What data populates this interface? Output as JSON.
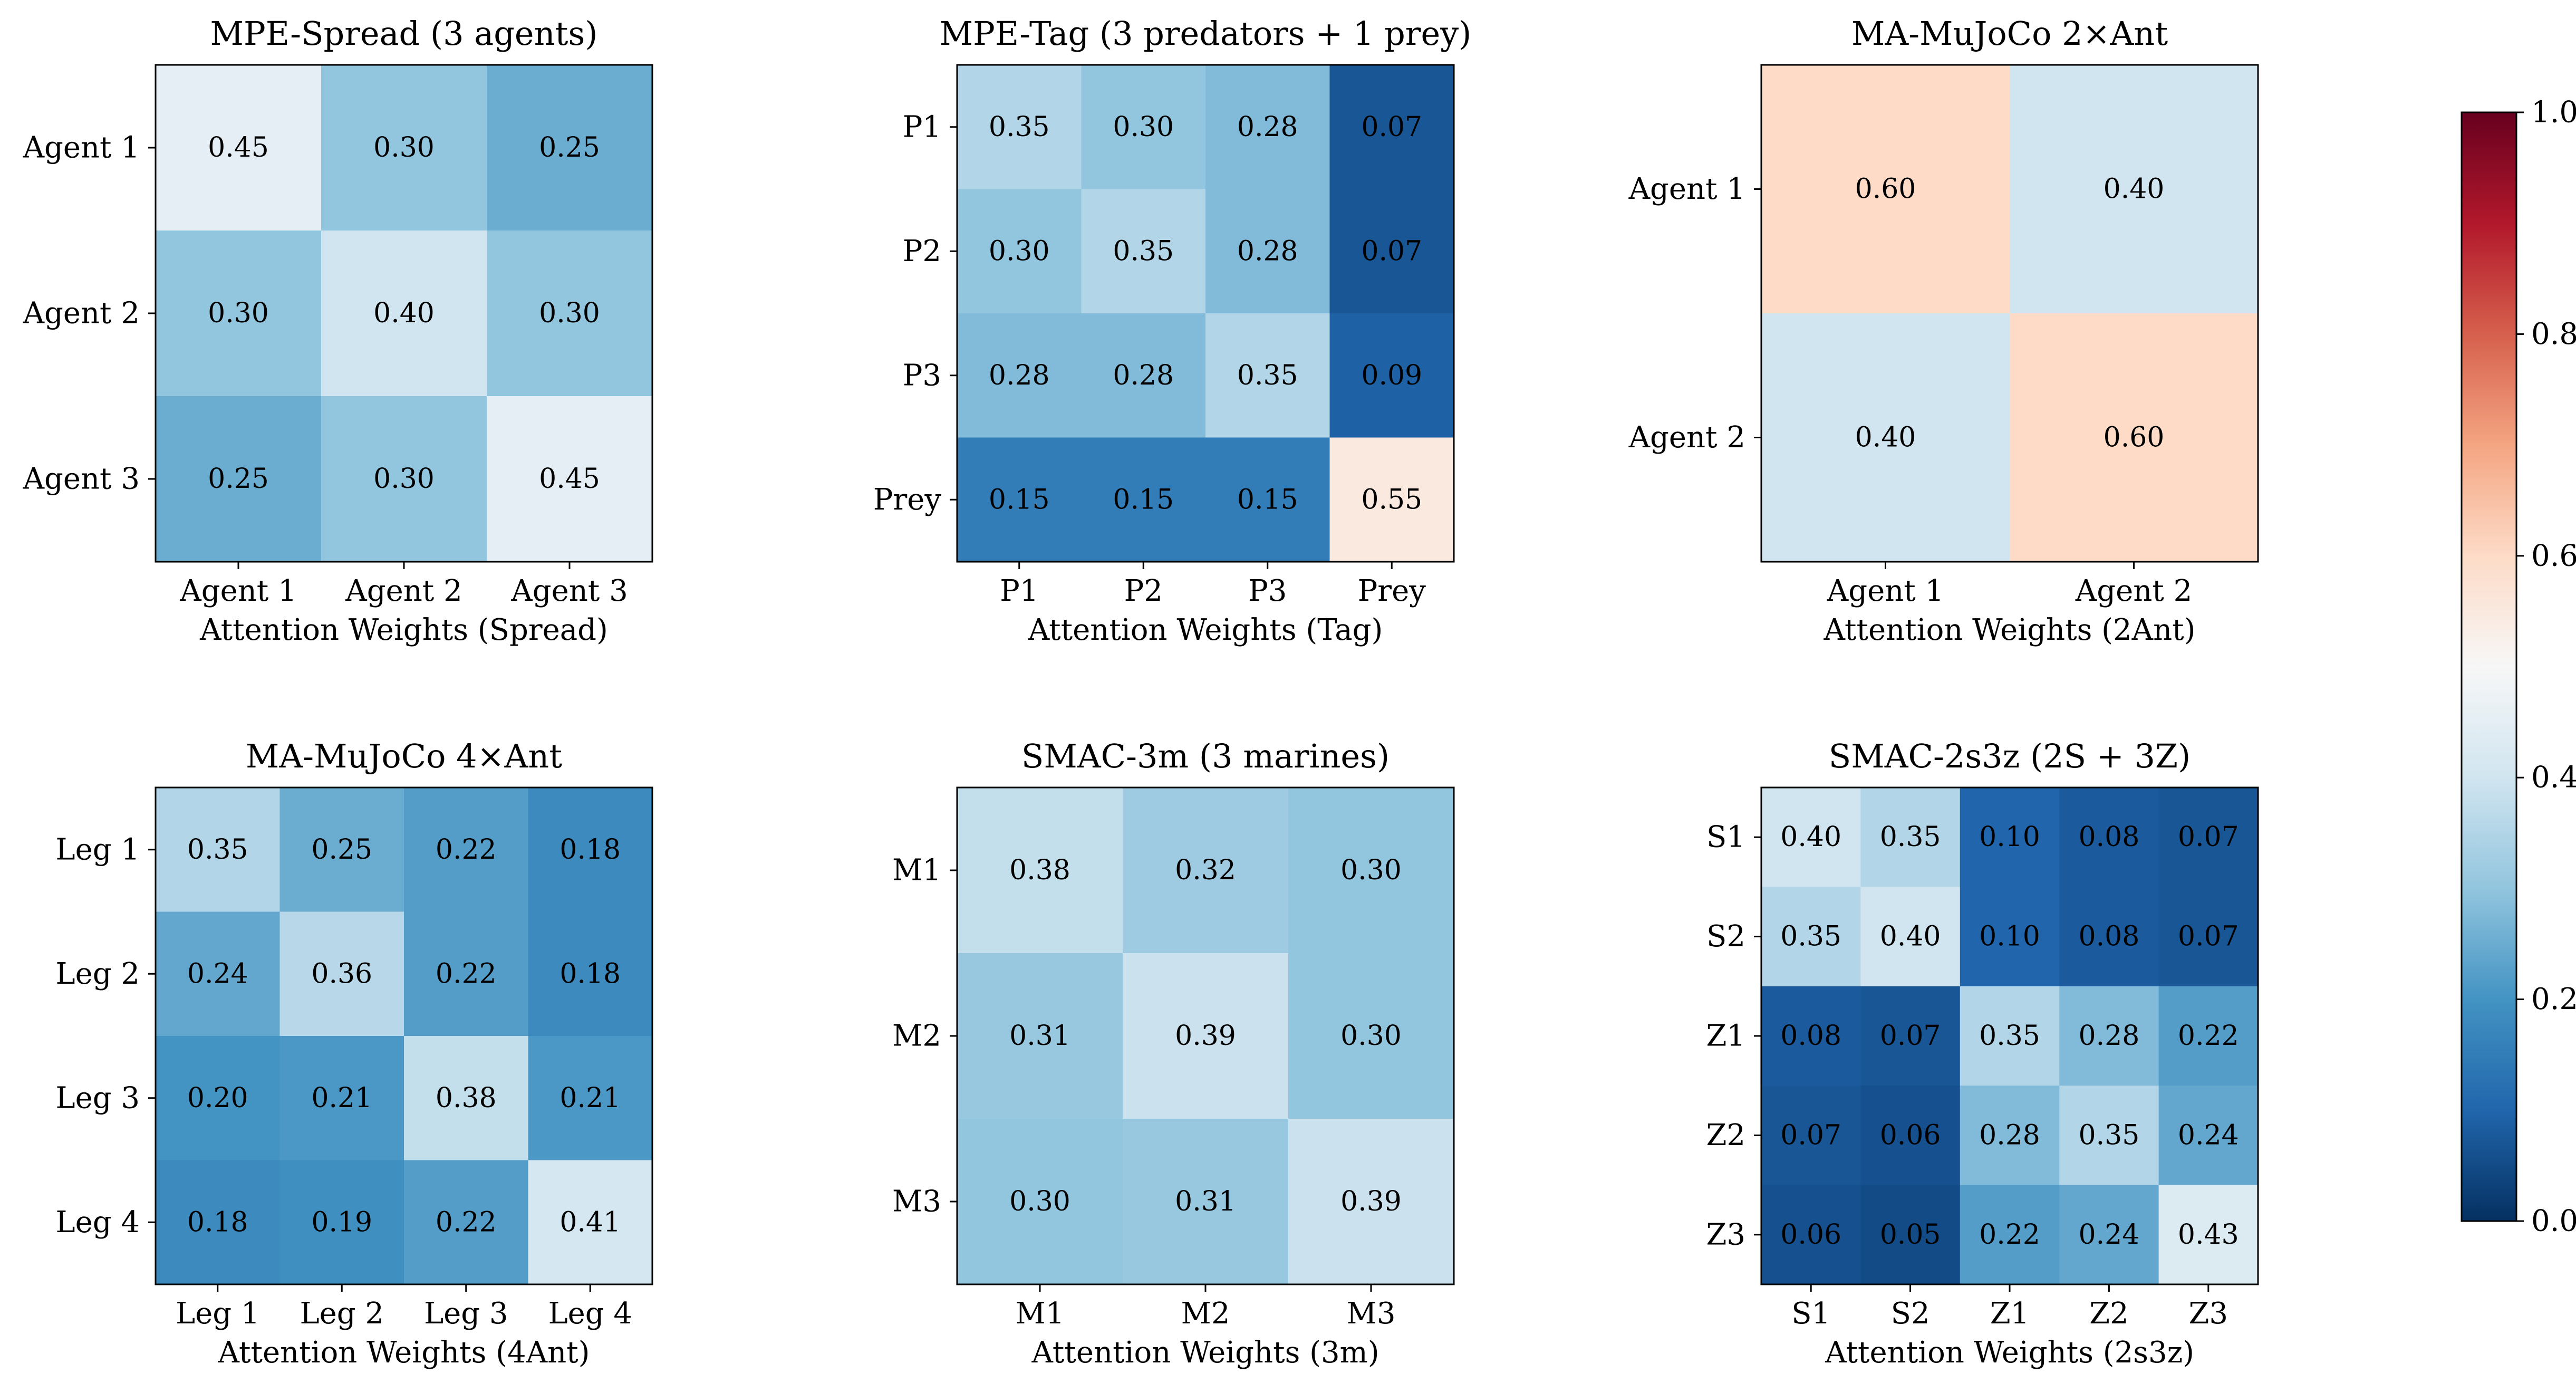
{
  "figure": {
    "colormap": "RdBu_r",
    "colormap_stops": [
      "#053061",
      "#2166ac",
      "#4393c3",
      "#92c5de",
      "#d1e5f0",
      "#f7f7f7",
      "#fddbc7",
      "#f4a582",
      "#d6604d",
      "#b2182b",
      "#67001f"
    ],
    "value_range": [
      0.0,
      1.0
    ]
  },
  "chart_data": [
    {
      "type": "heatmap",
      "title": "MPE-Spread (3 agents)",
      "xlabel": "Attention Weights (Spread)",
      "x_tick_labels": [
        "Agent 1",
        "Agent 2",
        "Agent 3"
      ],
      "y_tick_labels": [
        "Agent 1",
        "Agent 2",
        "Agent 3"
      ],
      "values": [
        [
          0.45,
          0.3,
          0.25
        ],
        [
          0.3,
          0.4,
          0.3
        ],
        [
          0.25,
          0.3,
          0.45
        ]
      ],
      "cell_labels": [
        [
          "0.45",
          "0.30",
          "0.25"
        ],
        [
          "0.30",
          "0.40",
          "0.30"
        ],
        [
          "0.25",
          "0.30",
          "0.45"
        ]
      ]
    },
    {
      "type": "heatmap",
      "title": "MPE-Tag (3 predators + 1 prey)",
      "xlabel": "Attention Weights (Tag)",
      "x_tick_labels": [
        "P1",
        "P2",
        "P3",
        "Prey"
      ],
      "y_tick_labels": [
        "P1",
        "P2",
        "P3",
        "Prey"
      ],
      "values": [
        [
          0.35,
          0.3,
          0.28,
          0.07
        ],
        [
          0.3,
          0.35,
          0.28,
          0.07
        ],
        [
          0.28,
          0.28,
          0.35,
          0.09
        ],
        [
          0.15,
          0.15,
          0.15,
          0.55
        ]
      ],
      "cell_labels": [
        [
          "0.35",
          "0.30",
          "0.28",
          "0.07"
        ],
        [
          "0.30",
          "0.35",
          "0.28",
          "0.07"
        ],
        [
          "0.28",
          "0.28",
          "0.35",
          "0.09"
        ],
        [
          "0.15",
          "0.15",
          "0.15",
          "0.55"
        ]
      ]
    },
    {
      "type": "heatmap",
      "title": "MA-MuJoCo 2×Ant",
      "xlabel": "Attention Weights (2Ant)",
      "x_tick_labels": [
        "Agent 1",
        "Agent 2"
      ],
      "y_tick_labels": [
        "Agent 1",
        "Agent 2"
      ],
      "values": [
        [
          0.6,
          0.4
        ],
        [
          0.4,
          0.6
        ]
      ],
      "cell_labels": [
        [
          "0.60",
          "0.40"
        ],
        [
          "0.40",
          "0.60"
        ]
      ]
    },
    {
      "type": "heatmap",
      "title": "MA-MuJoCo 4×Ant",
      "xlabel": "Attention Weights (4Ant)",
      "x_tick_labels": [
        "Leg 1",
        "Leg 2",
        "Leg 3",
        "Leg 4"
      ],
      "y_tick_labels": [
        "Leg 1",
        "Leg 2",
        "Leg 3",
        "Leg 4"
      ],
      "values": [
        [
          0.35,
          0.25,
          0.22,
          0.18
        ],
        [
          0.24,
          0.36,
          0.22,
          0.18
        ],
        [
          0.2,
          0.21,
          0.38,
          0.21
        ],
        [
          0.18,
          0.19,
          0.22,
          0.41
        ]
      ],
      "cell_labels": [
        [
          "0.35",
          "0.25",
          "0.22",
          "0.18"
        ],
        [
          "0.24",
          "0.36",
          "0.22",
          "0.18"
        ],
        [
          "0.20",
          "0.21",
          "0.38",
          "0.21"
        ],
        [
          "0.18",
          "0.19",
          "0.22",
          "0.41"
        ]
      ]
    },
    {
      "type": "heatmap",
      "title": "SMAC-3m (3 marines)",
      "xlabel": "Attention Weights (3m)",
      "x_tick_labels": [
        "M1",
        "M2",
        "M3"
      ],
      "y_tick_labels": [
        "M1",
        "M2",
        "M3"
      ],
      "values": [
        [
          0.38,
          0.32,
          0.3
        ],
        [
          0.31,
          0.39,
          0.3
        ],
        [
          0.3,
          0.31,
          0.39
        ]
      ],
      "cell_labels": [
        [
          "0.38",
          "0.32",
          "0.30"
        ],
        [
          "0.31",
          "0.39",
          "0.30"
        ],
        [
          "0.30",
          "0.31",
          "0.39"
        ]
      ]
    },
    {
      "type": "heatmap",
      "title": "SMAC-2s3z (2S + 3Z)",
      "xlabel": "Attention Weights (2s3z)",
      "x_tick_labels": [
        "S1",
        "S2",
        "Z1",
        "Z2",
        "Z3"
      ],
      "y_tick_labels": [
        "S1",
        "S2",
        "Z1",
        "Z2",
        "Z3"
      ],
      "values": [
        [
          0.4,
          0.35,
          0.1,
          0.08,
          0.07
        ],
        [
          0.35,
          0.4,
          0.1,
          0.08,
          0.07
        ],
        [
          0.08,
          0.07,
          0.35,
          0.28,
          0.22
        ],
        [
          0.07,
          0.06,
          0.28,
          0.35,
          0.24
        ],
        [
          0.06,
          0.05,
          0.22,
          0.24,
          0.43
        ]
      ],
      "cell_labels": [
        [
          "0.40",
          "0.35",
          "0.10",
          "0.08",
          "0.07"
        ],
        [
          "0.35",
          "0.40",
          "0.10",
          "0.08",
          "0.07"
        ],
        [
          "0.08",
          "0.07",
          "0.35",
          "0.28",
          "0.22"
        ],
        [
          "0.07",
          "0.06",
          "0.28",
          "0.35",
          "0.24"
        ],
        [
          "0.06",
          "0.05",
          "0.22",
          "0.24",
          "0.43"
        ]
      ]
    },
    {
      "type": "colorbar",
      "range": [
        0.0,
        1.0
      ],
      "tick_values": [
        0.0,
        0.2,
        0.4,
        0.6,
        0.8,
        1.0
      ],
      "tick_labels": [
        "0.0",
        "0.2",
        "0.4",
        "0.6",
        "0.8",
        "1.0"
      ]
    }
  ]
}
